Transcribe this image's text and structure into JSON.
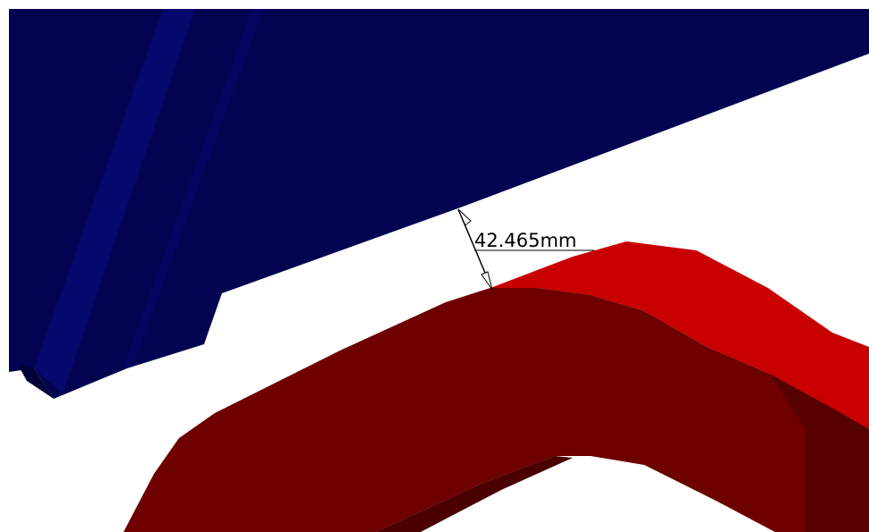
{
  "viewport": {
    "background_color": "#ffffff"
  },
  "parts": {
    "upper_part": {
      "color": "#020451",
      "edge_highlight_color": "#06086e",
      "dark_edge_color": "#020138"
    },
    "lower_part": {
      "top_face_color": "#c80000",
      "side_face_color": "#6e0000",
      "shadow_color": "#4a0000"
    }
  },
  "measurement": {
    "value_label": "42.465mm",
    "dimension_line_color": "#000000",
    "arrow_icon": "double-headed-arrow-icon"
  }
}
